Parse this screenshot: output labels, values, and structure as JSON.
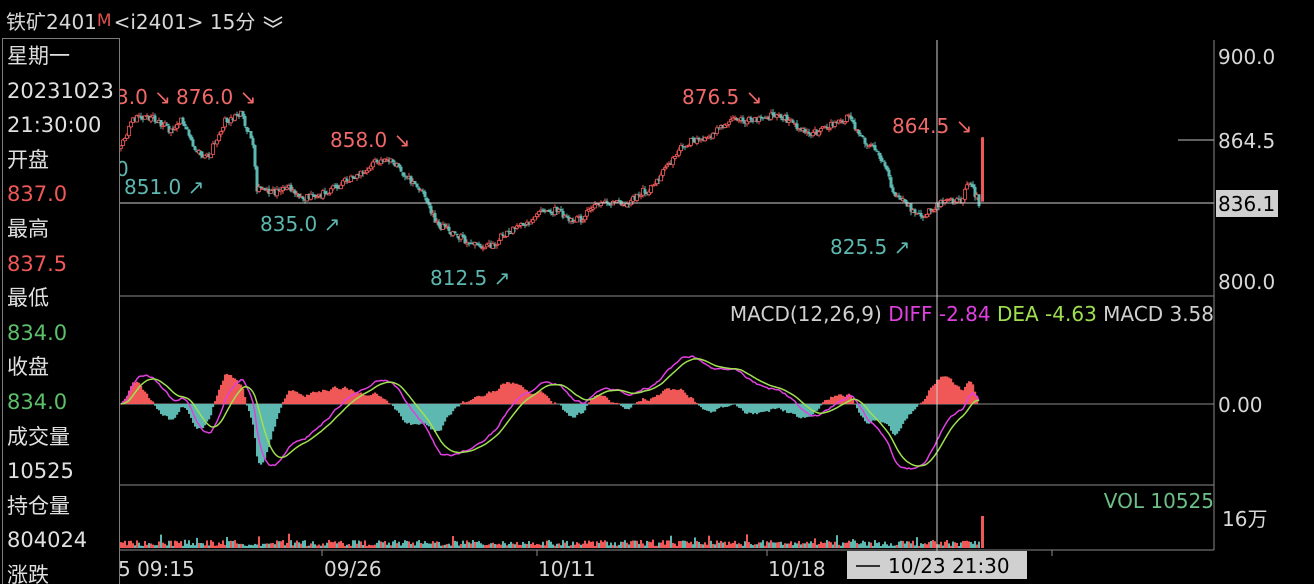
{
  "header": {
    "symbol": "铁矿2401",
    "marker": "M",
    "contract": "<i2401>",
    "period": "15分",
    "menu_icon": "double-chevron-down-icon"
  },
  "info_panel": {
    "weekday": "星期一",
    "date": "20231023",
    "time": "21:30:00",
    "open_label": "开盘",
    "open_value": "837.0",
    "high_label": "最高",
    "high_value": "837.5",
    "low_label": "最低",
    "low_value": "834.0",
    "close_label": "收盘",
    "close_value": "834.0",
    "volume_label": "成交量",
    "volume_value": "10525",
    "oi_label": "持仓量",
    "oi_value": "804024",
    "change_label": "涨跌"
  },
  "colors": {
    "up": "#f05858",
    "down": "#5cb8b0",
    "diff": "#e040e0",
    "dea": "#a0e050",
    "axis": "#8a8a8a",
    "background": "#000000"
  },
  "chart_data": {
    "type": "candlestick",
    "price_axis": {
      "ticks": [
        "900.0",
        "864.5",
        "836.1",
        "800.0"
      ],
      "current": "836.1",
      "ylim": [
        800,
        900
      ]
    },
    "annotations": {
      "highs": [
        "3.0",
        "876.0",
        "858.0",
        "876.5",
        "864.5"
      ],
      "lows": [
        "0",
        "851.0",
        "835.0",
        "812.5",
        "825.5"
      ]
    },
    "crosshair": {
      "time": "10/23 21:30",
      "price": "836.1"
    },
    "x_labels": [
      "5 09:15",
      "09/26",
      "10/11",
      "10/18"
    ],
    "anchor_points": [
      [
        0,
        862
      ],
      [
        6,
        872
      ],
      [
        12,
        874
      ],
      [
        18,
        872
      ],
      [
        24,
        868
      ],
      [
        30,
        872
      ],
      [
        38,
        858
      ],
      [
        44,
        856
      ],
      [
        52,
        872
      ],
      [
        60,
        875
      ],
      [
        66,
        862
      ],
      [
        68,
        842
      ],
      [
        76,
        840
      ],
      [
        84,
        842
      ],
      [
        92,
        838
      ],
      [
        98,
        838
      ],
      [
        106,
        842
      ],
      [
        112,
        845
      ],
      [
        118,
        847
      ],
      [
        124,
        852
      ],
      [
        130,
        855
      ],
      [
        136,
        853
      ],
      [
        142,
        848
      ],
      [
        148,
        843
      ],
      [
        152,
        838
      ],
      [
        158,
        826
      ],
      [
        166,
        822
      ],
      [
        174,
        818
      ],
      [
        180,
        815
      ],
      [
        186,
        817
      ],
      [
        192,
        822
      ],
      [
        198,
        825
      ],
      [
        206,
        828
      ],
      [
        212,
        832
      ],
      [
        218,
        832
      ],
      [
        224,
        828
      ],
      [
        230,
        828
      ],
      [
        236,
        834
      ],
      [
        244,
        836
      ],
      [
        252,
        834
      ],
      [
        260,
        840
      ],
      [
        266,
        842
      ],
      [
        272,
        850
      ],
      [
        280,
        860
      ],
      [
        288,
        864
      ],
      [
        296,
        866
      ],
      [
        304,
        872
      ],
      [
        312,
        872
      ],
      [
        320,
        873
      ],
      [
        328,
        874
      ],
      [
        334,
        872
      ],
      [
        340,
        868
      ],
      [
        346,
        866
      ],
      [
        352,
        868
      ],
      [
        358,
        872
      ],
      [
        364,
        873
      ],
      [
        370,
        864
      ],
      [
        376,
        860
      ],
      [
        382,
        852
      ],
      [
        386,
        840
      ],
      [
        390,
        838
      ],
      [
        396,
        832
      ],
      [
        402,
        830
      ],
      [
        408,
        834
      ],
      [
        414,
        837
      ],
      [
        420,
        836
      ],
      [
        424,
        844
      ],
      [
        428,
        838
      ]
    ],
    "macd": {
      "params": "MACD(12,26,9)",
      "diff_label": "DIFF",
      "diff": "-2.84",
      "dea_label": "DEA",
      "dea": "-4.63",
      "macd_label": "MACD",
      "macd": "3.58",
      "zero_label": "0.00",
      "ylim": [
        -10,
        7
      ]
    },
    "volume": {
      "label": "VOL",
      "value": "10525",
      "axis_unit": "16万"
    }
  }
}
